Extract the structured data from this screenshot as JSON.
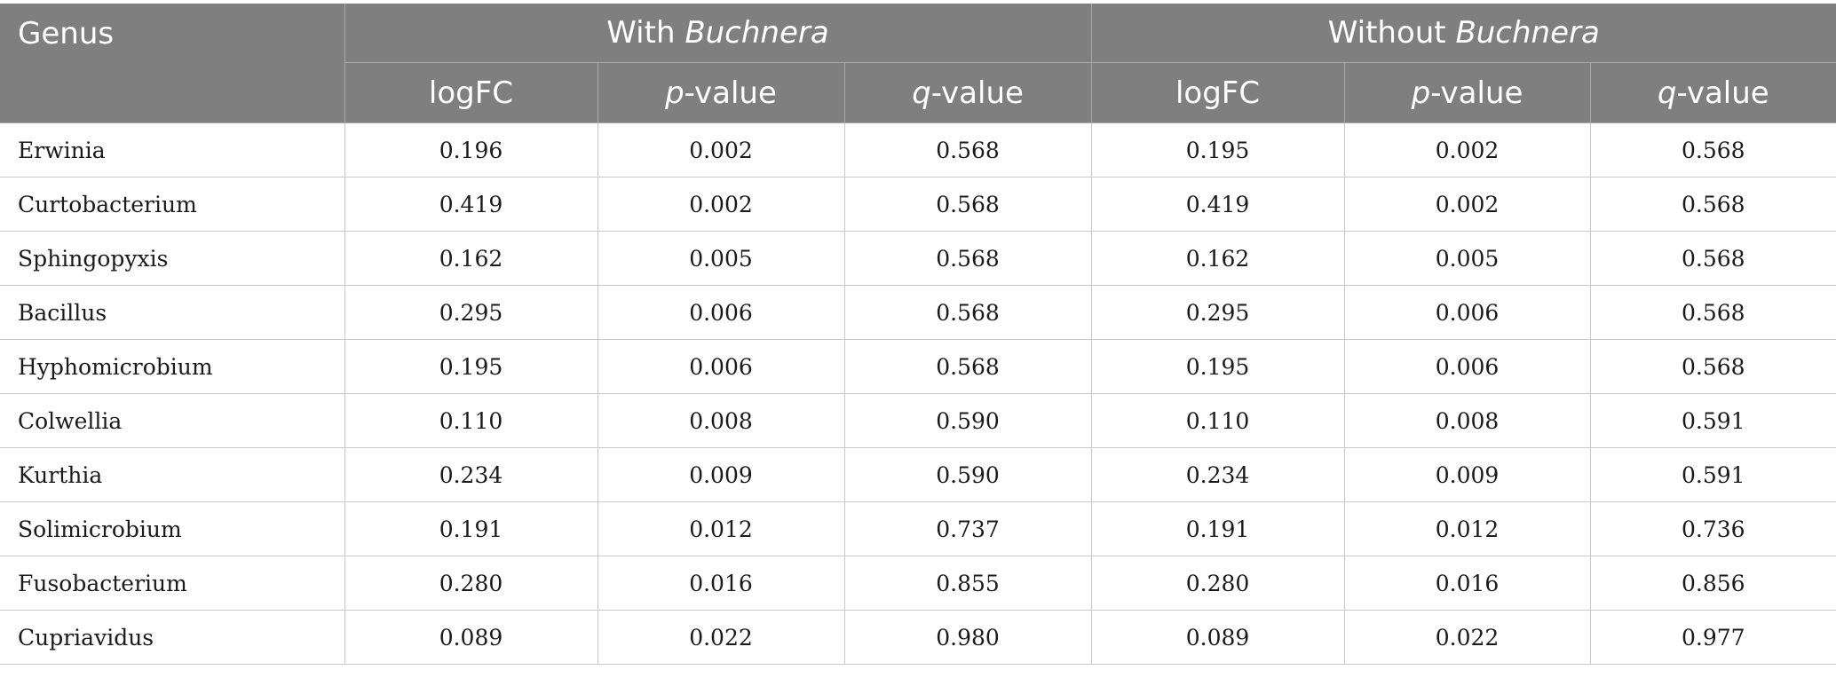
{
  "header": {
    "genus": "Genus",
    "with_prefix": "With ",
    "with_italic": "Buchnera",
    "without_prefix": "Without ",
    "without_italic": "Buchnera",
    "logfc": "logFC",
    "p_italic": "p",
    "p_suffix": "-value",
    "q_italic": "q",
    "q_suffix": "-value"
  },
  "rows": [
    {
      "genus": "Erwinia",
      "with": {
        "logfc": "0.196",
        "p": "0.002",
        "q": "0.568"
      },
      "without": {
        "logfc": "0.195",
        "p": "0.002",
        "q": "0.568"
      }
    },
    {
      "genus": "Curtobacterium",
      "with": {
        "logfc": "0.419",
        "p": "0.002",
        "q": "0.568"
      },
      "without": {
        "logfc": "0.419",
        "p": "0.002",
        "q": "0.568"
      }
    },
    {
      "genus": "Sphingopyxis",
      "with": {
        "logfc": "0.162",
        "p": "0.005",
        "q": "0.568"
      },
      "without": {
        "logfc": "0.162",
        "p": "0.005",
        "q": "0.568"
      }
    },
    {
      "genus": "Bacillus",
      "with": {
        "logfc": "0.295",
        "p": "0.006",
        "q": "0.568"
      },
      "without": {
        "logfc": "0.295",
        "p": "0.006",
        "q": "0.568"
      }
    },
    {
      "genus": "Hyphomicrobium",
      "with": {
        "logfc": "0.195",
        "p": "0.006",
        "q": "0.568"
      },
      "without": {
        "logfc": "0.195",
        "p": "0.006",
        "q": "0.568"
      }
    },
    {
      "genus": "Colwellia",
      "with": {
        "logfc": "0.110",
        "p": "0.008",
        "q": "0.590"
      },
      "without": {
        "logfc": "0.110",
        "p": "0.008",
        "q": "0.591"
      }
    },
    {
      "genus": "Kurthia",
      "with": {
        "logfc": "0.234",
        "p": "0.009",
        "q": "0.590"
      },
      "without": {
        "logfc": "0.234",
        "p": "0.009",
        "q": "0.591"
      }
    },
    {
      "genus": "Solimicrobium",
      "with": {
        "logfc": "0.191",
        "p": "0.012",
        "q": "0.737"
      },
      "without": {
        "logfc": "0.191",
        "p": "0.012",
        "q": "0.736"
      }
    },
    {
      "genus": "Fusobacterium",
      "with": {
        "logfc": "0.280",
        "p": "0.016",
        "q": "0.855"
      },
      "without": {
        "logfc": "0.280",
        "p": "0.016",
        "q": "0.856"
      }
    },
    {
      "genus": "Cupriavidus",
      "with": {
        "logfc": "0.089",
        "p": "0.022",
        "q": "0.980"
      },
      "without": {
        "logfc": "0.089",
        "p": "0.022",
        "q": "0.977"
      }
    }
  ]
}
